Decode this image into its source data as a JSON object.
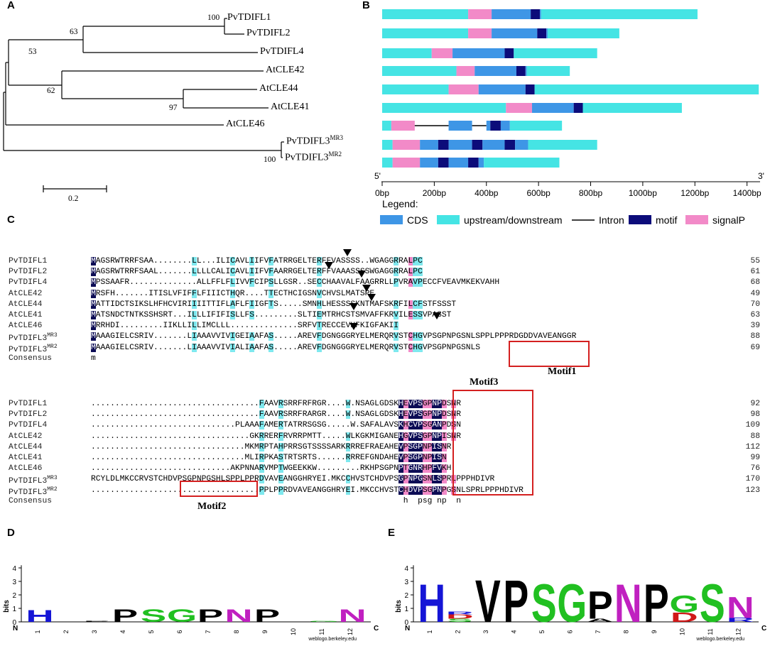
{
  "panels": {
    "a": "A",
    "b": "B",
    "c": "C",
    "d": "D",
    "e": "E"
  },
  "tree": {
    "leaves": [
      {
        "id": "PvTDIFL1",
        "base": "PvTDIFL1",
        "sup": ""
      },
      {
        "id": "PvTDIFL2",
        "base": "PvTDIFL2",
        "sup": ""
      },
      {
        "id": "PvTDIFL4",
        "base": "PvTDIFL4",
        "sup": ""
      },
      {
        "id": "AtCLE42",
        "base": "AtCLE42",
        "sup": ""
      },
      {
        "id": "AtCLE44",
        "base": "AtCLE44",
        "sup": ""
      },
      {
        "id": "AtCLE41",
        "base": "AtCLE41",
        "sup": ""
      },
      {
        "id": "AtCLE46",
        "base": "AtCLE46",
        "sup": ""
      },
      {
        "id": "PvTDIFL3MR3",
        "base": "PvTDIFL3",
        "sup": "MR3"
      },
      {
        "id": "PvTDIFL3MR2",
        "base": "PvTDIFL3",
        "sup": "MR2"
      }
    ],
    "bootstraps": [
      "100",
      "63",
      "53",
      "62",
      "97",
      "100"
    ],
    "scale_label": "0.2"
  },
  "gene_structure": {
    "axis_start": "5'",
    "axis_end": "3'",
    "ticks": [
      "0bp",
      "200bp",
      "400bp",
      "600bp",
      "800bp",
      "1000bp",
      "1200bp",
      "1400bp"
    ],
    "tick_values": [
      0,
      200,
      400,
      600,
      800,
      1000,
      1200,
      1400
    ],
    "legend_title": "Legend:",
    "legend": [
      {
        "key": "cds",
        "label": "CDS",
        "color": "#3e96e6"
      },
      {
        "key": "utr",
        "label": "upstream/downstream",
        "color": "#45e4e4"
      },
      {
        "key": "intron",
        "label": "Intron",
        "color": "#000000"
      },
      {
        "key": "motif",
        "label": "motif",
        "color": "#0c0c7a"
      },
      {
        "key": "signalp",
        "label": "signalP",
        "color": "#f28ac8"
      }
    ],
    "genes": [
      {
        "total": 1210,
        "segs": [
          [
            "utr",
            0,
            330
          ],
          [
            "signalp",
            330,
            420
          ],
          [
            "cds",
            420,
            570
          ],
          [
            "motif",
            570,
            605
          ],
          [
            "cds",
            605,
            610
          ],
          [
            "utr",
            610,
            1210
          ]
        ]
      },
      {
        "total": 910,
        "segs": [
          [
            "utr",
            0,
            330
          ],
          [
            "signalp",
            330,
            420
          ],
          [
            "cds",
            420,
            595
          ],
          [
            "motif",
            595,
            630
          ],
          [
            "cds",
            630,
            635
          ],
          [
            "utr",
            635,
            910
          ]
        ]
      },
      {
        "total": 825,
        "segs": [
          [
            "utr",
            0,
            190
          ],
          [
            "signalp",
            190,
            270
          ],
          [
            "cds",
            270,
            470
          ],
          [
            "motif",
            470,
            505
          ],
          [
            "utr",
            505,
            825
          ]
        ]
      },
      {
        "total": 720,
        "segs": [
          [
            "utr",
            0,
            285
          ],
          [
            "signalp",
            285,
            355
          ],
          [
            "cds",
            355,
            515
          ],
          [
            "motif",
            515,
            550
          ],
          [
            "cds",
            550,
            555
          ],
          [
            "utr",
            555,
            720
          ]
        ]
      },
      {
        "total": 1445,
        "segs": [
          [
            "utr",
            0,
            255
          ],
          [
            "signalp",
            255,
            370
          ],
          [
            "cds",
            370,
            550
          ],
          [
            "motif",
            550,
            585
          ],
          [
            "utr",
            585,
            1445
          ]
        ]
      },
      {
        "total": 1150,
        "segs": [
          [
            "utr",
            0,
            475
          ],
          [
            "signalp",
            475,
            575
          ],
          [
            "cds",
            575,
            735
          ],
          [
            "motif",
            735,
            770
          ],
          [
            "utr",
            770,
            1150
          ]
        ]
      },
      {
        "total": 690,
        "segs": [
          [
            "utr",
            0,
            35
          ],
          [
            "signalp",
            35,
            125
          ],
          [
            "intron",
            125,
            255
          ],
          [
            "cds",
            255,
            345
          ],
          [
            "intron",
            345,
            400
          ],
          [
            "cds",
            400,
            415
          ],
          [
            "motif",
            415,
            455
          ],
          [
            "cds",
            455,
            490
          ],
          [
            "utr",
            490,
            690
          ]
        ]
      },
      {
        "total": 825,
        "segs": [
          [
            "utr",
            0,
            40
          ],
          [
            "signalp",
            40,
            145
          ],
          [
            "cds",
            145,
            215
          ],
          [
            "motif",
            215,
            255
          ],
          [
            "cds",
            255,
            345
          ],
          [
            "motif",
            345,
            385
          ],
          [
            "cds",
            385,
            470
          ],
          [
            "motif",
            470,
            510
          ],
          [
            "cds",
            510,
            560
          ],
          [
            "utr",
            560,
            825
          ]
        ]
      },
      {
        "total": 680,
        "segs": [
          [
            "utr",
            0,
            40
          ],
          [
            "signalp",
            40,
            145
          ],
          [
            "cds",
            145,
            215
          ],
          [
            "motif",
            215,
            255
          ],
          [
            "cds",
            255,
            330
          ],
          [
            "motif",
            330,
            370
          ],
          [
            "cds",
            370,
            390
          ],
          [
            "utr",
            390,
            680
          ]
        ]
      }
    ]
  },
  "alignment": {
    "block1": {
      "names": [
        {
          "base": "PvTDIFL1",
          "sup": ""
        },
        {
          "base": "PvTDIFL2",
          "sup": ""
        },
        {
          "base": "PvTDIFL4",
          "sup": ""
        },
        {
          "base": "AtCLE42",
          "sup": ""
        },
        {
          "base": "AtCLE44",
          "sup": ""
        },
        {
          "base": "AtCLE41",
          "sup": ""
        },
        {
          "base": "AtCLE46",
          "sup": ""
        },
        {
          "base": "PvTDIFL3",
          "sup": "MR3"
        },
        {
          "base": "PvTDIFL3",
          "sup": "MR2"
        },
        {
          "base": "Consensus",
          "sup": ""
        }
      ],
      "rows": [
        "MAGSRWTRRFSAA........LL...ILICAVLIIFVFATRRGELTERFFVASSSS..WGAGGRRALPC",
        "MAGSRWTRRFSAAL.......LLLLCALICAVLIIFVFAARRGELTERFFVAAASSSSWGAGGRRALPC",
        "MPSSAAFR..............ALLFFLFLIVVFCIPSLLGSR..SECCHAAVALFAAGRRLLPVRAVPECCFVEAVMKEKVAHH",
        "MRSFH.......ITISLVFIFFLFIIICTHQR....TTECTHCIGSNVCHVSLMATSPE",
        "MATTIDCTSIKSLHFHCVIRIIIITTIFLAFLFIIGFTS.....SMNHLHESSSSKNTMAFSKRFILCFSTFSSST",
        "MATSNDCTNTKSSHSRT...ILLLIFIFISLLFS.........SLTIEMTRHCSTSMVAFFKRVILESSVPASST",
        "MRRHDI.........IIKLLILLIMCLLL..............SRFVTRECCEVHFKIGFAKII",
        "MAAAGIELCSRIV.......LIAAAVVIVIGEIAAFAS.....AREVFDGNGGGRYELMERQRVSTCHGVPSGPNPGSNLSPPLPPPRDGDDVAVEANGGR",
        "MAAAGIELCSRIV.......LIAAAVVIVIALIAAFAS.....AREVFDGNGGGRYELMERQRVSTCHGVPSGPNPGSNLS",
        "m"
      ],
      "nums": [
        "55",
        "61",
        "68",
        "49",
        "70",
        "63",
        "39",
        "88",
        "69",
        ""
      ]
    },
    "block2": {
      "names": [
        {
          "base": "PvTDIFL1",
          "sup": ""
        },
        {
          "base": "PvTDIFL2",
          "sup": ""
        },
        {
          "base": "PvTDIFL4",
          "sup": ""
        },
        {
          "base": "AtCLE42",
          "sup": ""
        },
        {
          "base": "AtCLE44",
          "sup": ""
        },
        {
          "base": "AtCLE41",
          "sup": ""
        },
        {
          "base": "AtCLE46",
          "sup": ""
        },
        {
          "base": "PvTDIFL3",
          "sup": "MR3"
        },
        {
          "base": "PvTDIFL3",
          "sup": "MR2"
        },
        {
          "base": "Consensus",
          "sup": ""
        }
      ],
      "rows": [
        "...................................FAAVRSRRFRFRGR....W.NSAGLGDSKHEVPSGPNPDSNR",
        "...................................FAAVRSRRFRARGR....W.NSAGLGDSKHEVPSGPNPDSNR",
        "..............................PLAAAFAMERTATRRSGSG.....W.SAFALAVSKHCVPSGANPDSN",
        ".................................GKRRERFRVRRPMTT.....WLKGKMIGANEHGVPSGPNPISNR",
        "................................MKMRPTAHPRRSGTSSSSARKRRREFRAEAHEVPSGPNPISNR",
        "................................MLIRPKASTRTSRTS......RRREFGNDAHEVPSGPNPISN",
        ".............................AKPNNARVMPTWGEEKKW.........RKHPSGPNPTGNRHPFVKH",
        "RCYLDLMKCCRVSTCHDVPSGPNPGSHLSPPLPPRDVAVEANGGHRYEI.MKCCHVSTCHDVPSGPNPGSNLSPRLPPPHDIVR",
        "...................................PPLPPRDVAVEANGGHRYEI.MKCCHVSTCHDVPSGPNPGSNLSPRLPPPHDIVR",
        "                                                                 h  psg np  n"
      ],
      "nums": [
        "92",
        "98",
        "109",
        "88",
        "112",
        "99",
        "76",
        "170",
        "123",
        ""
      ]
    },
    "motif_labels": [
      "Motif1",
      "Motif2",
      "Motif3"
    ]
  },
  "logos": {
    "y_axis_label": "bits",
    "y_ticks": [
      "0",
      "1",
      "2",
      "3",
      "4"
    ],
    "n_label": "N",
    "c_label": "C",
    "watermark": "weblogo.berkeley.edu",
    "positions": [
      "1",
      "2",
      "3",
      "4",
      "5",
      "6",
      "7",
      "8",
      "9",
      "10",
      "11",
      "12"
    ],
    "colors": {
      "H": "#1515d6",
      "P": "#000000",
      "V": "#000000",
      "S": "#21c021",
      "G": "#21c021",
      "N": "#c020c0",
      "D": "#d01818",
      "R": "#1515d6",
      "A": "#000000",
      "Q": "#c020c0"
    },
    "d": {
      "columns": [
        {
          "pos": 1,
          "stack": [
            [
              "H",
              0.9
            ]
          ]
        },
        {
          "pos": 2,
          "stack": []
        },
        {
          "pos": 3,
          "stack": [
            [
              "P",
              0.05
            ]
          ]
        },
        {
          "pos": 4,
          "stack": [
            [
              "P",
              0.95
            ]
          ]
        },
        {
          "pos": 5,
          "stack": [
            [
              "S",
              0.95
            ]
          ]
        },
        {
          "pos": 6,
          "stack": [
            [
              "G",
              0.95
            ]
          ]
        },
        {
          "pos": 7,
          "stack": [
            [
              "P",
              0.95
            ]
          ]
        },
        {
          "pos": 8,
          "stack": [
            [
              "N",
              0.95
            ]
          ]
        },
        {
          "pos": 9,
          "stack": [
            [
              "P",
              0.95
            ]
          ]
        },
        {
          "pos": 10,
          "stack": []
        },
        {
          "pos": 11,
          "stack": [
            [
              "G",
              0.05
            ]
          ]
        },
        {
          "pos": 12,
          "stack": [
            [
              "N",
              0.95
            ]
          ]
        }
      ]
    },
    "e": {
      "columns": [
        {
          "pos": 1,
          "stack": [
            [
              "H",
              2.9
            ]
          ]
        },
        {
          "pos": 2,
          "stack": [
            [
              "S",
              0.25
            ],
            [
              "D",
              0.3
            ],
            [
              "R",
              0.2
            ]
          ]
        },
        {
          "pos": 3,
          "stack": [
            [
              "V",
              3.2
            ]
          ]
        },
        {
          "pos": 4,
          "stack": [
            [
              "P",
              3.2
            ]
          ]
        },
        {
          "pos": 5,
          "stack": [
            [
              "S",
              2.9
            ]
          ]
        },
        {
          "pos": 6,
          "stack": [
            [
              "G",
              2.9
            ]
          ]
        },
        {
          "pos": 7,
          "stack": [
            [
              "A",
              0.25
            ],
            [
              "P",
              2.1
            ]
          ]
        },
        {
          "pos": 8,
          "stack": [
            [
              "N",
              2.9
            ]
          ]
        },
        {
          "pos": 9,
          "stack": [
            [
              "P",
              2.9
            ]
          ]
        },
        {
          "pos": 10,
          "stack": [
            [
              "D",
              0.7
            ],
            [
              "G",
              1.3
            ]
          ]
        },
        {
          "pos": 11,
          "stack": [
            [
              "S",
              2.9
            ]
          ]
        },
        {
          "pos": 12,
          "stack": [
            [
              "R",
              0.3
            ],
            [
              "N",
              1.6
            ]
          ]
        }
      ]
    }
  }
}
